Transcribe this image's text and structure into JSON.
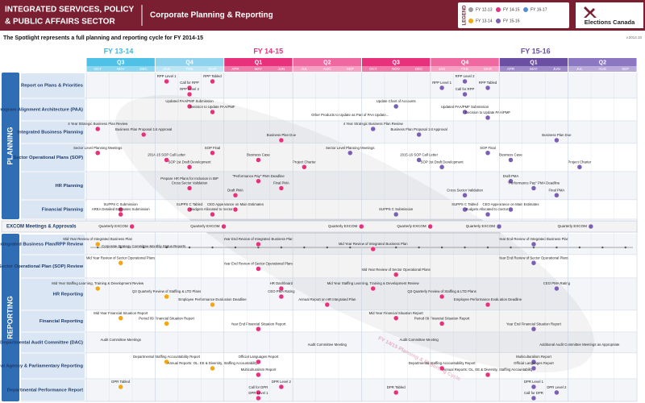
{
  "header": {
    "title_line1": "INTEGRATED SERVICES, POLICY",
    "title_line2": "& PUBLIC AFFAIRS SECTOR",
    "subtitle": "Corporate Planning & Reporting",
    "legend_title": "LEGEND",
    "logo": "Elections Canada",
    "version": "v.2014.10"
  },
  "legend": [
    {
      "label": "FY 12-13",
      "color": "#9e9e9e"
    },
    {
      "label": "FY 13-14",
      "color": "#f3a712"
    },
    {
      "label": "FY 14-15",
      "color": "#e8317d"
    },
    {
      "label": "FY 15-16",
      "color": "#7b5fb5"
    },
    {
      "label": "FY 16-17",
      "color": "#4f8fd6"
    }
  ],
  "spotlight": "The Spotlight represents a full planning and reporting cycle for FY 2014-15",
  "cycle_label": "FY 14/15 Planning & Reporting Cycle",
  "timeline": {
    "fiscal_years": [
      {
        "label": "FY 13-14",
        "color": "#3bb9e0"
      },
      {
        "label": "FY 14-15",
        "color": "#e8317d"
      },
      {
        "label": "FY 15-16",
        "color": "#6a4fa3"
      }
    ],
    "quarters": [
      {
        "label": "Q3",
        "months": [
          "OCT",
          "NOV",
          "DEC"
        ],
        "color": "#4fc0e6",
        "month_color": "#8dd6ef"
      },
      {
        "label": "Q4",
        "months": [
          "JAN",
          "FEB",
          "MAR"
        ],
        "color": "#8fd3ee",
        "month_color": "#bfe6f5"
      },
      {
        "label": "Q1",
        "months": [
          "APR",
          "MAY",
          "JUN"
        ],
        "color": "#e8317d",
        "month_color": "#f07aa9"
      },
      {
        "label": "Q2",
        "months": [
          "JUL",
          "AUG",
          "SEP"
        ],
        "color": "#f068a0",
        "month_color": "#f5a2c4"
      },
      {
        "label": "Q3",
        "months": [
          "OCT",
          "NOV",
          "DEC"
        ],
        "color": "#e8317d",
        "month_color": "#f07aa9"
      },
      {
        "label": "Q4",
        "months": [
          "JAN",
          "FEB",
          "MAR"
        ],
        "color": "#f068a0",
        "month_color": "#f5a2c4"
      },
      {
        "label": "Q1",
        "months": [
          "APR",
          "MAY",
          "JUN"
        ],
        "color": "#6a4fa3",
        "month_color": "#9d89c9"
      },
      {
        "label": "Q2",
        "months": [
          "JUL",
          "AUG",
          "SEP"
        ],
        "color": "#8c77c2",
        "month_color": "#b8aad9"
      }
    ]
  },
  "sections": [
    {
      "label": "PLANNING",
      "rows": [
        {
          "label": "Report on Plans & Priorities",
          "events": [
            {
              "label": "RPP Level 1",
              "color": "#e8317d"
            },
            {
              "label": "Call for RPP",
              "color": "#e8317d"
            },
            {
              "label": "RPP Level 2",
              "color": "#e8317d"
            },
            {
              "label": "RPP Tabled",
              "color": "#e8317d"
            },
            {
              "label": "RPP Level 1",
              "color": "#7b5fb5"
            },
            {
              "label": "Call for RPP",
              "color": "#7b5fb5"
            },
            {
              "label": "RPP Level 2",
              "color": "#7b5fb5"
            },
            {
              "label": "RPP Tabled",
              "color": "#7b5fb5"
            }
          ]
        },
        {
          "label": "Program Alignment Architecture (PAA)",
          "events": [
            {
              "label": "Updated PAA/PMF Submission",
              "color": "#e8317d"
            },
            {
              "label": "Decision to Update PAA/PMF",
              "color": "#e8317d"
            },
            {
              "label": "Other Products to Update as Part of PAA Update...",
              "color": null
            },
            {
              "label": "Update Chart of Accounts",
              "color": "#7b5fb5"
            },
            {
              "label": "Updated PAA/PMF Submission",
              "color": "#7b5fb5"
            },
            {
              "label": "Decision to Update PAA/PMF",
              "color": "#7b5fb5"
            }
          ]
        },
        {
          "label": "Integrated Business Planning",
          "events": [
            {
              "label": "4 Year Strategic Business Plan Review",
              "color": "#e8317d"
            },
            {
              "label": "Business Plan Proposal 1st Approval",
              "color": "#e8317d"
            },
            {
              "label": "Business Plan Due",
              "color": "#e8317d"
            },
            {
              "label": "4 Year Strategic Business Plan Review",
              "color": "#7b5fb5"
            },
            {
              "label": "Business Plan Proposal 1st Approval",
              "color": "#7b5fb5"
            },
            {
              "label": "Business Plan Due",
              "color": "#7b5fb5"
            }
          ]
        },
        {
          "label": "Sector Operational Plans (SOP)",
          "events": [
            {
              "label": "Sector Level Planning Meetings",
              "color": "#e8317d"
            },
            {
              "label": "2014-15 SOP Call Letter",
              "color": "#e8317d"
            },
            {
              "label": "SOP 1st Draft Development",
              "color": "#e8317d"
            },
            {
              "label": "SOP Final",
              "color": "#e8317d"
            },
            {
              "label": "Business Case",
              "color": "#e8317d"
            },
            {
              "label": "Project Charter",
              "color": "#e8317d"
            },
            {
              "label": "Sector Level Planning Meetings",
              "color": "#7b5fb5"
            },
            {
              "label": "2015-16 SOP Call Letter",
              "color": "#7b5fb5"
            },
            {
              "label": "SOP 1st Draft Development",
              "color": "#7b5fb5"
            },
            {
              "label": "SOP Final",
              "color": "#7b5fb5"
            },
            {
              "label": "Business Case",
              "color": "#7b5fb5"
            },
            {
              "label": "Project Charter",
              "color": "#7b5fb5"
            }
          ]
        },
        {
          "label": "HR Planning",
          "events": [
            {
              "label": "Prepare HR Plans for Inclusion in IBP",
              "color": null
            },
            {
              "label": "Cross Sector Validation",
              "color": "#e8317d"
            },
            {
              "label": "Draft PMA",
              "color": "#e8317d"
            },
            {
              "label": "\"Performance Pay\" PMA Deadline",
              "color": "#e8317d"
            },
            {
              "label": "Final PMA",
              "color": "#e8317d"
            },
            {
              "label": "Cross Sector Validation",
              "color": "#7b5fb5"
            },
            {
              "label": "Draft PMA",
              "color": "#7b5fb5"
            },
            {
              "label": "\"Performance Pay\" PMA Deadline",
              "color": "#7b5fb5"
            },
            {
              "label": "Final PMA",
              "color": "#7b5fb5"
            }
          ]
        },
        {
          "label": "Financial Planning",
          "events": [
            {
              "label": "SUPPS C Submission",
              "color": "#e8317d"
            },
            {
              "label": "AREA Detailed Estimates Submission",
              "color": "#e8317d"
            },
            {
              "label": "SUPPS C Tabled",
              "color": "#e8317d"
            },
            {
              "label": "Budgets Allocated to Sectors",
              "color": "#e8317d"
            },
            {
              "label": "CEO Appearance on Main Estimates",
              "color": "#e8317d"
            },
            {
              "label": "SUPPS C Submission",
              "color": "#7b5fb5"
            },
            {
              "label": "SUPPS C Tabled",
              "color": "#7b5fb5"
            },
            {
              "label": "Budgets Allocated to Sectors",
              "color": "#7b5fb5"
            },
            {
              "label": "CEO Appearance on Main Estimates",
              "color": "#7b5fb5"
            }
          ]
        }
      ]
    },
    {
      "label": "REPORTING",
      "rows": [
        {
          "label": "Integrated Business Plan/RPP Review",
          "events": [
            {
              "label": "Mid Year Review of Integrated Business Plan",
              "color": "#f3a712"
            },
            {
              "label": "Corporate Strategy Committee Monthly Status Reports",
              "color": null
            },
            {
              "label": "Year End Review of Integrated Business Plan",
              "color": "#e8317d"
            },
            {
              "label": "Mid Year Review of Integrated Business Plan",
              "color": "#e8317d"
            },
            {
              "label": "Year End Review of Integrated Business Plan",
              "color": "#7b5fb5"
            }
          ]
        },
        {
          "label": "Sector Operational Plan (SOP) Review",
          "events": [
            {
              "label": "Mid Year Review of Sector Operational Plans",
              "color": "#f3a712"
            },
            {
              "label": "Year End Review of Sector Operational Plans",
              "color": "#e8317d"
            },
            {
              "label": "Mid Year Review of Sector Operational Plans",
              "color": "#e8317d"
            },
            {
              "label": "Year End Review of Sector Operational Plans",
              "color": "#7b5fb5"
            }
          ]
        },
        {
          "label": "HR Reporting",
          "events": [
            {
              "label": "Mid Year Staffing Learning, Training & Development Review",
              "color": "#f3a712"
            },
            {
              "label": "Q3 Quarterly Review of Staffing & LTD Plans",
              "color": "#f3a712"
            },
            {
              "label": "Employee Performance Evaluation Deadline",
              "color": "#f3a712"
            },
            {
              "label": "HR Dashboard",
              "color": "#e8317d"
            },
            {
              "label": "CEO PMA Rating",
              "color": "#e8317d"
            },
            {
              "label": "Annual Report on HR Integrated Plan",
              "color": "#e8317d"
            },
            {
              "label": "Mid Year Staffing Learning, Training & Development Review",
              "color": "#e8317d"
            },
            {
              "label": "Q3 Quarterly Review of Staffing & LTD Plans",
              "color": "#e8317d"
            },
            {
              "label": "Employee Performance Evaluation Deadline",
              "color": "#e8317d"
            },
            {
              "label": "CEO PMA Rating",
              "color": "#7b5fb5"
            }
          ]
        },
        {
          "label": "Financial Reporting",
          "events": [
            {
              "label": "Mid Year Financial Situation Report",
              "color": "#f3a712"
            },
            {
              "label": "Period 09 Financial Situation Report",
              "color": "#f3a712"
            },
            {
              "label": "Year End Financial Situation Report",
              "color": "#e8317d"
            },
            {
              "label": "Mid Year Financial Situation Report",
              "color": "#e8317d"
            },
            {
              "label": "Period 09 Financial Situation Report",
              "color": "#e8317d"
            },
            {
              "label": "Year End Financial Situation Report",
              "color": "#7b5fb5"
            }
          ]
        },
        {
          "label": "Departmental Audit Committee (DAC)",
          "events": [
            {
              "label": "Audit Committee Meetings",
              "color": null
            },
            {
              "label": "Audit Committee Meeting",
              "color": null
            },
            {
              "label": "Audit Committee Meeting",
              "color": null
            },
            {
              "label": "Additional Audit Committee Meetings as Appropriate",
              "color": null
            }
          ]
        },
        {
          "label": "Central Agency & Parliamentary Reporting",
          "events": [
            {
              "label": "Departmental Staffing Accountability Report",
              "color": "#f3a712"
            },
            {
              "label": "Annual Reports: OL, EE & Diversity, Staffing Accountability",
              "color": "#f3a712"
            },
            {
              "label": "Multiculturalism Report",
              "color": "#e8317d"
            },
            {
              "label": "Official Languages Report",
              "color": "#e8317d"
            },
            {
              "label": "Departmental Staffing Accountability Report",
              "color": "#e8317d"
            },
            {
              "label": "Annual Reports: OL, EE & Diversity, Staffing Accountability",
              "color": "#e8317d"
            },
            {
              "label": "Multiculturalism Report",
              "color": "#7b5fb5"
            },
            {
              "label": "Official Languages Report",
              "color": "#7b5fb5"
            }
          ]
        },
        {
          "label": "Departmental Performance Report",
          "events": [
            {
              "label": "DPR Tabled",
              "color": "#f3a712"
            },
            {
              "label": "Call for DPR",
              "color": "#e8317d"
            },
            {
              "label": "DPR Level 1",
              "color": "#e8317d"
            },
            {
              "label": "DPR Level 2",
              "color": "#e8317d"
            },
            {
              "label": "DPR Tabled",
              "color": "#e8317d"
            },
            {
              "label": "Call for DPR",
              "color": "#7b5fb5"
            },
            {
              "label": "DPR Level 1",
              "color": "#7b5fb5"
            },
            {
              "label": "DPR Level 2",
              "color": "#7b5fb5"
            }
          ]
        }
      ]
    }
  ],
  "excom": {
    "label": "EXCOM Meetings & Approvals",
    "events": [
      {
        "label": "Quarterly EXCOM",
        "color": "#e8317d"
      },
      {
        "label": "Quarterly EXCOM",
        "color": "#e8317d"
      },
      {
        "label": "Quarterly EXCOM",
        "color": "#e8317d"
      },
      {
        "label": "Quarterly EXCOM",
        "color": "#e8317d"
      },
      {
        "label": "Quarterly EXCOM",
        "color": "#7b5fb5"
      },
      {
        "label": "Quarterly EXCOM",
        "color": "#7b5fb5"
      }
    ]
  }
}
